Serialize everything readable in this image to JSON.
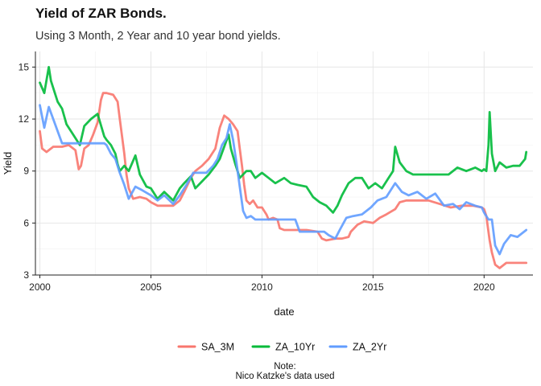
{
  "chart_data": {
    "type": "line",
    "title": "Yield of ZAR Bonds.",
    "subtitle": "Using 3 Month, 2 Year and 10 year bond yields.",
    "xlabel": "date",
    "ylabel": "Yield",
    "xlim": [
      1999.8,
      2022.2
    ],
    "ylim": [
      3,
      15.9
    ],
    "x_ticks": [
      2000,
      2005,
      2010,
      2015,
      2020
    ],
    "y_ticks": [
      3,
      6,
      9,
      12,
      15
    ],
    "grid": true,
    "legend_position": "bottom",
    "caption_lines": [
      "Note:",
      "Nico Katzke's data used"
    ],
    "series": [
      {
        "name": "SA_3M",
        "color": "#F8766D",
        "x": [
          2000.0,
          2000.1,
          2000.3,
          2000.6,
          2001.0,
          2001.3,
          2001.6,
          2001.75,
          2001.85,
          2002.0,
          2002.2,
          2002.4,
          2002.6,
          2002.75,
          2002.85,
          2003.0,
          2003.3,
          2003.5,
          2003.6,
          2003.7,
          2003.8,
          2003.9,
          2004.0,
          2004.2,
          2004.5,
          2004.8,
          2005.0,
          2005.3,
          2005.6,
          2006.0,
          2006.3,
          2006.5,
          2006.8,
          2007.0,
          2007.3,
          2007.6,
          2007.9,
          2008.1,
          2008.3,
          2008.5,
          2008.7,
          2008.9,
          2009.0,
          2009.1,
          2009.2,
          2009.3,
          2009.45,
          2009.6,
          2009.8,
          2010.0,
          2010.2,
          2010.3,
          2010.5,
          2010.7,
          2010.8,
          2011.0,
          2011.5,
          2012.0,
          2012.5,
          2012.7,
          2012.9,
          2013.3,
          2013.6,
          2013.9,
          2014.0,
          2014.3,
          2014.6,
          2015.0,
          2015.3,
          2015.6,
          2016.0,
          2016.2,
          2016.5,
          2017.0,
          2017.5,
          2018.0,
          2018.5,
          2019.0,
          2019.5,
          2019.9,
          2020.0,
          2020.1,
          2020.25,
          2020.35,
          2020.5,
          2020.7,
          2021.0,
          2021.5,
          2021.9
        ],
        "values": [
          11.3,
          10.3,
          10.1,
          10.4,
          10.4,
          10.5,
          10.2,
          9.1,
          9.3,
          10.3,
          10.5,
          11.1,
          11.8,
          13.1,
          13.5,
          13.5,
          13.4,
          13.0,
          12.0,
          11.0,
          10.0,
          8.8,
          8.0,
          7.4,
          7.5,
          7.4,
          7.2,
          7.0,
          7.0,
          7.0,
          7.3,
          7.8,
          8.6,
          9.0,
          9.3,
          9.7,
          10.3,
          11.5,
          12.2,
          12.0,
          11.7,
          11.3,
          10.3,
          9.3,
          8.2,
          7.3,
          7.1,
          7.3,
          6.9,
          6.9,
          6.5,
          6.2,
          6.3,
          6.2,
          5.7,
          5.6,
          5.6,
          5.6,
          5.5,
          5.1,
          5.0,
          5.1,
          5.1,
          5.2,
          5.5,
          5.9,
          6.1,
          6.0,
          6.3,
          6.5,
          6.8,
          7.2,
          7.3,
          7.3,
          7.3,
          7.1,
          6.9,
          7.0,
          7.0,
          6.9,
          6.8,
          6.4,
          5.0,
          4.3,
          3.6,
          3.4,
          3.7,
          3.7,
          3.7
        ]
      },
      {
        "name": "ZA_10Yr",
        "color": "#00BA38",
        "x": [
          2000.0,
          2000.2,
          2000.4,
          2000.5,
          2000.6,
          2000.8,
          2001.0,
          2001.2,
          2001.5,
          2001.8,
          2002.0,
          2002.3,
          2002.6,
          2002.9,
          2003.0,
          2003.2,
          2003.4,
          2003.5,
          2003.6,
          2003.8,
          2004.0,
          2004.3,
          2004.5,
          2004.8,
          2005.0,
          2005.3,
          2005.6,
          2006.0,
          2006.3,
          2006.5,
          2006.8,
          2007.0,
          2007.3,
          2007.6,
          2007.9,
          2008.1,
          2008.3,
          2008.5,
          2008.6,
          2008.8,
          2009.0,
          2009.3,
          2009.5,
          2009.7,
          2010.0,
          2010.3,
          2010.6,
          2011.0,
          2011.3,
          2011.6,
          2012.0,
          2012.3,
          2012.6,
          2012.9,
          2013.2,
          2013.4,
          2013.6,
          2013.9,
          2014.2,
          2014.5,
          2014.8,
          2015.1,
          2015.4,
          2015.7,
          2015.9,
          2016.0,
          2016.2,
          2016.5,
          2016.8,
          2017.2,
          2017.6,
          2018.0,
          2018.4,
          2018.8,
          2019.2,
          2019.6,
          2019.9,
          2020.0,
          2020.1,
          2020.2,
          2020.25,
          2020.35,
          2020.5,
          2020.7,
          2021.0,
          2021.3,
          2021.6,
          2021.85,
          2021.9
        ],
        "values": [
          14.1,
          13.5,
          15.0,
          14.2,
          13.8,
          13.0,
          12.6,
          11.7,
          11.1,
          10.5,
          11.6,
          12.0,
          12.3,
          11.0,
          10.8,
          10.5,
          10.0,
          9.4,
          9.0,
          9.3,
          9.0,
          9.9,
          8.8,
          8.1,
          8.0,
          7.4,
          7.8,
          7.3,
          8.0,
          8.3,
          8.7,
          8.0,
          8.4,
          8.8,
          9.3,
          9.7,
          10.4,
          11.1,
          10.3,
          9.4,
          8.6,
          9.0,
          9.0,
          8.6,
          8.9,
          8.6,
          8.3,
          8.6,
          8.3,
          8.2,
          8.1,
          7.5,
          7.2,
          7.0,
          6.6,
          7.0,
          7.6,
          8.3,
          8.6,
          8.6,
          8.0,
          8.3,
          8.0,
          8.6,
          9.0,
          10.4,
          9.5,
          9.0,
          8.8,
          8.8,
          8.8,
          8.8,
          8.8,
          9.2,
          9.0,
          9.2,
          9.0,
          9.1,
          9.0,
          10.5,
          12.4,
          10.0,
          9.0,
          9.5,
          9.2,
          9.3,
          9.3,
          9.7,
          10.1
        ]
      },
      {
        "name": "ZA_2Yr",
        "color": "#619CFF",
        "x": [
          2000.0,
          2000.2,
          2000.4,
          2000.6,
          2000.8,
          2001.0,
          2001.3,
          2001.6,
          2002.0,
          2002.3,
          2002.6,
          2002.9,
          2003.0,
          2003.2,
          2003.4,
          2003.6,
          2003.8,
          2004.0,
          2004.3,
          2004.6,
          2005.0,
          2005.3,
          2005.6,
          2006.0,
          2006.3,
          2006.6,
          2006.9,
          2007.2,
          2007.5,
          2007.8,
          2008.0,
          2008.2,
          2008.4,
          2008.55,
          2008.7,
          2008.85,
          2009.0,
          2009.15,
          2009.3,
          2009.5,
          2009.7,
          2010.0,
          2010.5,
          2011.0,
          2011.5,
          2011.7,
          2012.0,
          2012.4,
          2012.8,
          2013.0,
          2013.3,
          2013.5,
          2013.8,
          2014.1,
          2014.5,
          2014.9,
          2015.2,
          2015.6,
          2016.0,
          2016.3,
          2016.6,
          2017.0,
          2017.4,
          2017.8,
          2018.2,
          2018.6,
          2018.9,
          2019.2,
          2019.6,
          2019.9,
          2020.0,
          2020.2,
          2020.35,
          2020.5,
          2020.7,
          2020.9,
          2021.2,
          2021.5,
          2021.9
        ],
        "values": [
          12.8,
          11.5,
          12.7,
          12.0,
          11.3,
          10.6,
          10.6,
          10.6,
          10.6,
          10.6,
          10.6,
          10.6,
          10.5,
          10.0,
          9.7,
          8.9,
          8.2,
          7.4,
          8.1,
          7.9,
          7.6,
          7.3,
          7.6,
          7.1,
          7.6,
          8.2,
          8.9,
          8.9,
          8.9,
          9.3,
          9.7,
          10.5,
          10.9,
          11.7,
          10.8,
          9.5,
          8.1,
          6.7,
          6.3,
          6.4,
          6.2,
          6.2,
          6.2,
          6.2,
          6.2,
          5.5,
          5.5,
          5.5,
          5.5,
          5.3,
          5.1,
          5.6,
          6.3,
          6.4,
          6.5,
          6.9,
          7.3,
          7.5,
          8.3,
          7.8,
          7.6,
          7.8,
          7.4,
          7.7,
          7.0,
          7.1,
          6.8,
          7.2,
          7.0,
          6.9,
          6.6,
          6.2,
          6.2,
          4.7,
          4.2,
          4.8,
          5.3,
          5.2,
          5.6
        ]
      }
    ]
  }
}
